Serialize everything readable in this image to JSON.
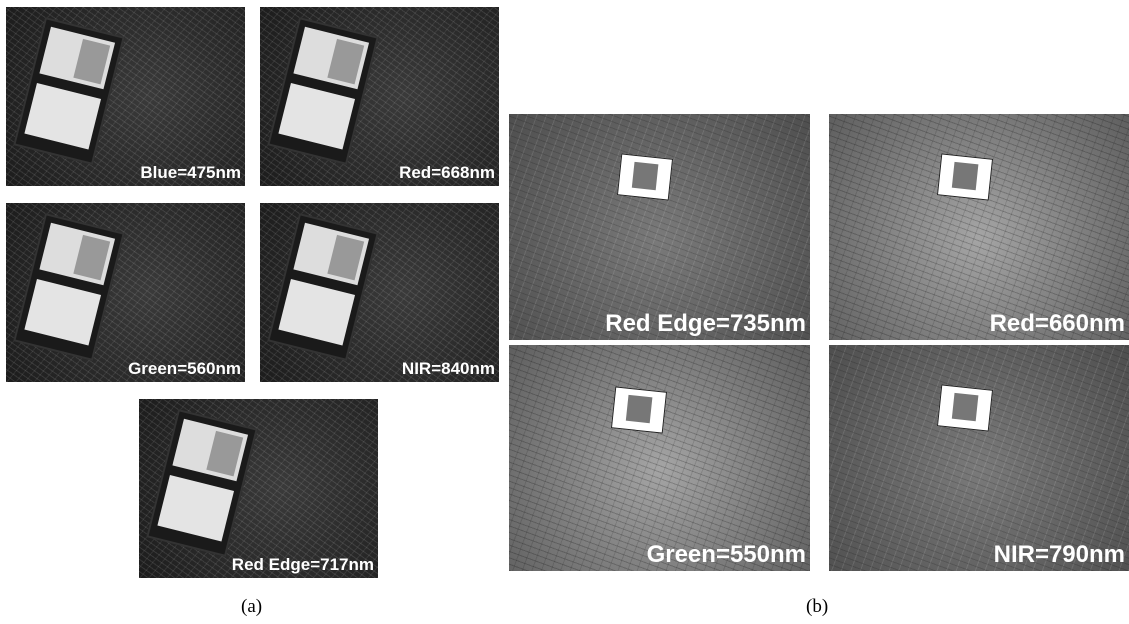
{
  "panel_a": {
    "caption": "(a)",
    "images": [
      {
        "label": "Blue=475nm"
      },
      {
        "label": "Red=668nm"
      },
      {
        "label": "Green=560nm"
      },
      {
        "label": "NIR=840nm"
      },
      {
        "label": "Red Edge=717nm"
      }
    ]
  },
  "panel_b": {
    "caption": "(b)",
    "images": [
      {
        "label": "Red Edge=735nm"
      },
      {
        "label": "Red=660nm"
      },
      {
        "label": "Green=550nm"
      },
      {
        "label": "NIR=790nm"
      }
    ]
  }
}
